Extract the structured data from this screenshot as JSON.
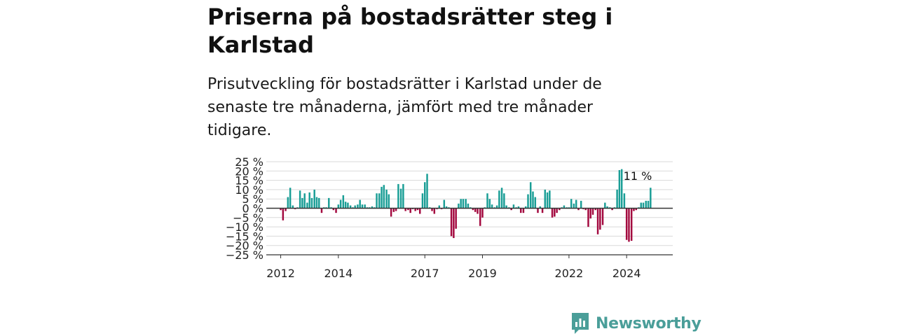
{
  "header": {
    "title": "Priserna på bostadsrätter steg i Karlstad",
    "subtitle": "Prisutveckling för bostadsrätter i Karlstad under de senaste tre månaderna, jämfört med tre månader tidigare."
  },
  "brand": {
    "name": "Newsworthy",
    "icon": "newsworthy-logo-icon"
  },
  "colors": {
    "positive": "#1a9e96",
    "negative": "#a3093f",
    "grid": "#d9d9d9",
    "axis": "#333333"
  },
  "chart_data": {
    "type": "bar",
    "ylim": [
      -25,
      25
    ],
    "yticks": [
      25,
      20,
      15,
      10,
      5,
      0,
      -5,
      -10,
      -15,
      -20,
      -25
    ],
    "ytick_labels": [
      "25 %",
      "20 %",
      "15 %",
      "10 %",
      "5 %",
      "0 %",
      "−5 %",
      "−10 %",
      "−15 %",
      "−20 %",
      "−25 %"
    ],
    "xticks": [
      {
        "label": "2012",
        "x": 2012.0
      },
      {
        "label": "2014",
        "x": 2014.0
      },
      {
        "label": "2017",
        "x": 2017.0
      },
      {
        "label": "2019",
        "x": 2019.0
      },
      {
        "label": "2022",
        "x": 2022.0
      },
      {
        "label": "2024",
        "x": 2024.0
      }
    ],
    "xlim": [
      2011.5,
      2025.6
    ],
    "series": [
      {
        "points": [
          {
            "x": 2012.0,
            "y": -1
          },
          {
            "x": 2012.08,
            "y": -6.5
          },
          {
            "x": 2012.17,
            "y": -1.5
          },
          {
            "x": 2012.25,
            "y": 6
          },
          {
            "x": 2012.33,
            "y": 11
          },
          {
            "x": 2012.42,
            "y": 1.5
          },
          {
            "x": 2012.5,
            "y": -0.5
          },
          {
            "x": 2012.58,
            "y": 0.5
          },
          {
            "x": 2012.67,
            "y": 9.5
          },
          {
            "x": 2012.75,
            "y": 5.5
          },
          {
            "x": 2012.83,
            "y": 8
          },
          {
            "x": 2012.92,
            "y": 3
          },
          {
            "x": 2013.0,
            "y": 8.5
          },
          {
            "x": 2013.08,
            "y": 5.5
          },
          {
            "x": 2013.17,
            "y": 10
          },
          {
            "x": 2013.25,
            "y": 6
          },
          {
            "x": 2013.33,
            "y": 5.5
          },
          {
            "x": 2013.42,
            "y": -2.5
          },
          {
            "x": 2013.5,
            "y": 0.5
          },
          {
            "x": 2013.58,
            "y": 0.5
          },
          {
            "x": 2013.67,
            "y": 5.5
          },
          {
            "x": 2013.75,
            "y": 0.5
          },
          {
            "x": 2013.83,
            "y": -1
          },
          {
            "x": 2013.92,
            "y": -2.5
          },
          {
            "x": 2014.0,
            "y": 2
          },
          {
            "x": 2014.08,
            "y": 4.5
          },
          {
            "x": 2014.17,
            "y": 7
          },
          {
            "x": 2014.25,
            "y": 3.5
          },
          {
            "x": 2014.33,
            "y": 3
          },
          {
            "x": 2014.42,
            "y": 1.5
          },
          {
            "x": 2014.5,
            "y": 0.5
          },
          {
            "x": 2014.58,
            "y": 1.5
          },
          {
            "x": 2014.67,
            "y": 2
          },
          {
            "x": 2014.75,
            "y": 4.5
          },
          {
            "x": 2014.83,
            "y": 2
          },
          {
            "x": 2014.92,
            "y": 2
          },
          {
            "x": 2015.0,
            "y": 0.5
          },
          {
            "x": 2015.08,
            "y": 0.5
          },
          {
            "x": 2015.17,
            "y": 1
          },
          {
            "x": 2015.25,
            "y": 0.5
          },
          {
            "x": 2015.33,
            "y": 8
          },
          {
            "x": 2015.42,
            "y": 8
          },
          {
            "x": 2015.5,
            "y": 11.5
          },
          {
            "x": 2015.58,
            "y": 12.5
          },
          {
            "x": 2015.67,
            "y": 10
          },
          {
            "x": 2015.75,
            "y": 7.5
          },
          {
            "x": 2015.83,
            "y": -4.5
          },
          {
            "x": 2015.92,
            "y": -2
          },
          {
            "x": 2016.0,
            "y": -1.5
          },
          {
            "x": 2016.08,
            "y": 13
          },
          {
            "x": 2016.17,
            "y": 10.5
          },
          {
            "x": 2016.25,
            "y": 13
          },
          {
            "x": 2016.33,
            "y": -1.5
          },
          {
            "x": 2016.42,
            "y": -1
          },
          {
            "x": 2016.5,
            "y": -2.5
          },
          {
            "x": 2016.58,
            "y": -0.5
          },
          {
            "x": 2016.67,
            "y": -1.5
          },
          {
            "x": 2016.75,
            "y": -1
          },
          {
            "x": 2016.83,
            "y": -3
          },
          {
            "x": 2016.92,
            "y": 8
          },
          {
            "x": 2017.0,
            "y": 14
          },
          {
            "x": 2017.08,
            "y": 18.5
          },
          {
            "x": 2017.17,
            "y": 0.5
          },
          {
            "x": 2017.25,
            "y": -1.5
          },
          {
            "x": 2017.33,
            "y": -3
          },
          {
            "x": 2017.42,
            "y": -0.5
          },
          {
            "x": 2017.5,
            "y": 1.5
          },
          {
            "x": 2017.58,
            "y": -0.5
          },
          {
            "x": 2017.67,
            "y": 4.5
          },
          {
            "x": 2017.75,
            "y": 1
          },
          {
            "x": 2017.83,
            "y": 0.5
          },
          {
            "x": 2017.92,
            "y": -15
          },
          {
            "x": 2018.0,
            "y": -16
          },
          {
            "x": 2018.08,
            "y": -11
          },
          {
            "x": 2018.17,
            "y": 2.5
          },
          {
            "x": 2018.25,
            "y": 5
          },
          {
            "x": 2018.33,
            "y": 5
          },
          {
            "x": 2018.42,
            "y": 5
          },
          {
            "x": 2018.5,
            "y": 2.5
          },
          {
            "x": 2018.58,
            "y": 0.5
          },
          {
            "x": 2018.67,
            "y": -1
          },
          {
            "x": 2018.75,
            "y": -2
          },
          {
            "x": 2018.83,
            "y": -3
          },
          {
            "x": 2018.92,
            "y": -9.5
          },
          {
            "x": 2019.0,
            "y": -5
          },
          {
            "x": 2019.08,
            "y": 0.5
          },
          {
            "x": 2019.17,
            "y": 8
          },
          {
            "x": 2019.25,
            "y": 5
          },
          {
            "x": 2019.33,
            "y": 2
          },
          {
            "x": 2019.42,
            "y": 0.5
          },
          {
            "x": 2019.5,
            "y": 1.5
          },
          {
            "x": 2019.58,
            "y": 9.5
          },
          {
            "x": 2019.67,
            "y": 11
          },
          {
            "x": 2019.75,
            "y": 8
          },
          {
            "x": 2019.83,
            "y": 1.5
          },
          {
            "x": 2019.92,
            "y": 0.5
          },
          {
            "x": 2020.0,
            "y": -1
          },
          {
            "x": 2020.08,
            "y": 2
          },
          {
            "x": 2020.17,
            "y": 0.5
          },
          {
            "x": 2020.25,
            "y": 1
          },
          {
            "x": 2020.33,
            "y": -2.5
          },
          {
            "x": 2020.42,
            "y": -2.5
          },
          {
            "x": 2020.5,
            "y": 1
          },
          {
            "x": 2020.58,
            "y": 7.5
          },
          {
            "x": 2020.67,
            "y": 14
          },
          {
            "x": 2020.75,
            "y": 9
          },
          {
            "x": 2020.83,
            "y": 6
          },
          {
            "x": 2020.92,
            "y": -2.5
          },
          {
            "x": 2021.0,
            "y": 1
          },
          {
            "x": 2021.08,
            "y": -2.5
          },
          {
            "x": 2021.17,
            "y": 10
          },
          {
            "x": 2021.25,
            "y": 8.5
          },
          {
            "x": 2021.33,
            "y": 9.5
          },
          {
            "x": 2021.42,
            "y": -5
          },
          {
            "x": 2021.5,
            "y": -4.5
          },
          {
            "x": 2021.58,
            "y": -2.5
          },
          {
            "x": 2021.67,
            "y": -1
          },
          {
            "x": 2021.75,
            "y": 0.5
          },
          {
            "x": 2021.83,
            "y": 1.5
          },
          {
            "x": 2021.92,
            "y": 0.5
          },
          {
            "x": 2022.0,
            "y": 0.5
          },
          {
            "x": 2022.08,
            "y": 5
          },
          {
            "x": 2022.17,
            "y": 2.5
          },
          {
            "x": 2022.25,
            "y": 4.5
          },
          {
            "x": 2022.33,
            "y": -1
          },
          {
            "x": 2022.42,
            "y": 4
          },
          {
            "x": 2022.5,
            "y": -0.5
          },
          {
            "x": 2022.58,
            "y": -1
          },
          {
            "x": 2022.67,
            "y": -10
          },
          {
            "x": 2022.75,
            "y": -5.5
          },
          {
            "x": 2022.83,
            "y": -3.5
          },
          {
            "x": 2022.92,
            "y": -1
          },
          {
            "x": 2023.0,
            "y": -14
          },
          {
            "x": 2023.08,
            "y": -11.5
          },
          {
            "x": 2023.17,
            "y": -9
          },
          {
            "x": 2023.25,
            "y": 3
          },
          {
            "x": 2023.33,
            "y": 1
          },
          {
            "x": 2023.42,
            "y": 0.5
          },
          {
            "x": 2023.5,
            "y": -1
          },
          {
            "x": 2023.58,
            "y": 0.5
          },
          {
            "x": 2023.67,
            "y": 10
          },
          {
            "x": 2023.75,
            "y": 20.5
          },
          {
            "x": 2023.83,
            "y": 21
          },
          {
            "x": 2023.92,
            "y": 8
          },
          {
            "x": 2024.0,
            "y": -17
          },
          {
            "x": 2024.08,
            "y": -18
          },
          {
            "x": 2024.17,
            "y": -17.5
          },
          {
            "x": 2024.25,
            "y": -1.5
          },
          {
            "x": 2024.33,
            "y": -1
          },
          {
            "x": 2024.42,
            "y": 0.5
          },
          {
            "x": 2024.5,
            "y": 3
          },
          {
            "x": 2024.58,
            "y": 3
          },
          {
            "x": 2024.67,
            "y": 4
          },
          {
            "x": 2024.75,
            "y": 4
          },
          {
            "x": 2024.83,
            "y": 11
          }
        ]
      }
    ],
    "annotation": {
      "label": "11 %",
      "x": 2024.83,
      "y": 11
    }
  }
}
